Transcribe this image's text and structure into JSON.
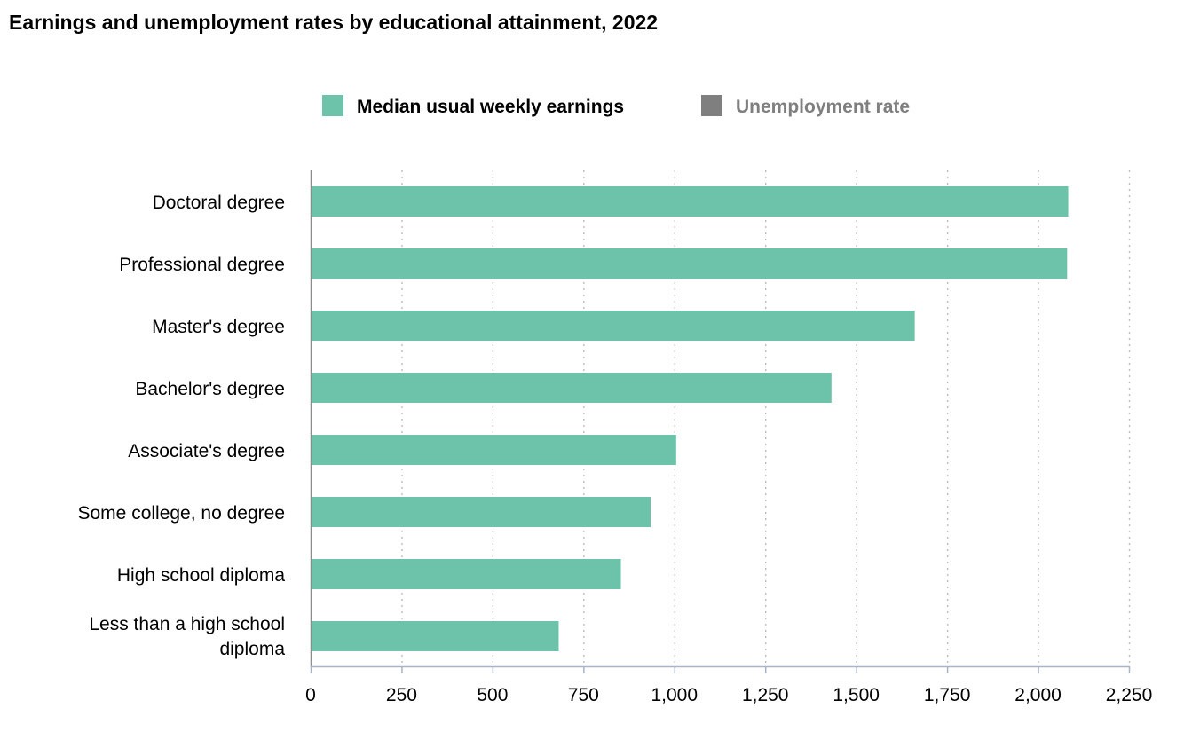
{
  "title": "Earnings and unemployment rates by educational attainment, 2022",
  "legend": {
    "items": [
      {
        "label": "Median usual weekly earnings",
        "color": "#6DC3A9",
        "active": true
      },
      {
        "label": "Unemployment rate",
        "color": "#7F7F7F",
        "active": false
      }
    ]
  },
  "chart_data": {
    "type": "bar",
    "orientation": "horizontal",
    "title": "Earnings and unemployment rates by educational attainment, 2022",
    "xlabel": "",
    "ylabel": "",
    "xlim": [
      0,
      2250
    ],
    "x_ticks": [
      0,
      250,
      500,
      750,
      1000,
      1250,
      1500,
      1750,
      2000,
      2250
    ],
    "x_tick_labels": [
      "0",
      "250",
      "500",
      "750",
      "1,000",
      "1,250",
      "1,500",
      "1,750",
      "2,000",
      "2,250"
    ],
    "grid": true,
    "legend_position": "top-center",
    "categories": [
      "Doctoral degree",
      "Professional degree",
      "Master's degree",
      "Bachelor's degree",
      "Associate's degree",
      "Some college, no degree",
      "High school diploma",
      "Less than a high school diploma"
    ],
    "category_label_lines": [
      [
        "Doctoral degree"
      ],
      [
        "Professional degree"
      ],
      [
        "Master's degree"
      ],
      [
        "Bachelor's degree"
      ],
      [
        "Associate's degree"
      ],
      [
        "Some college, no degree"
      ],
      [
        "High school diploma"
      ],
      [
        "Less than a high school",
        "diploma"
      ]
    ],
    "series": [
      {
        "name": "Median usual weekly earnings",
        "color": "#6DC3A9",
        "values": [
          2083,
          2080,
          1661,
          1432,
          1005,
          935,
          853,
          682
        ]
      }
    ]
  }
}
